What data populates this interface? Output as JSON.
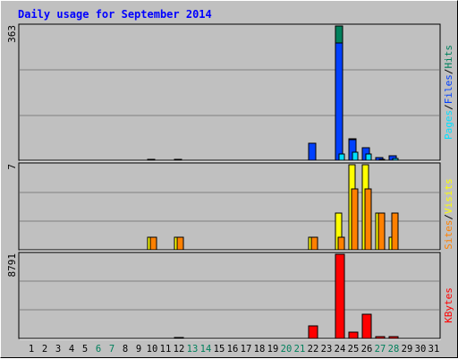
{
  "title": "Daily usage for September 2014",
  "colors": {
    "hits": "#00805c",
    "files": "#0040ff",
    "pages": "#00e0ff",
    "visits": "#ffff00",
    "sites": "#ff8000",
    "kbytes": "#ff0000",
    "weekday_label": "#000000",
    "weekend_label": "#00805c"
  },
  "chart_data": [
    {
      "type": "bar",
      "panel": "top",
      "ymax_label": "363",
      "ylim": [
        0,
        363
      ],
      "legend": [
        "Pages",
        "/",
        "Files",
        "/",
        "Hits"
      ],
      "categories": [
        "1",
        "2",
        "3",
        "4",
        "5",
        "6",
        "7",
        "8",
        "9",
        "10",
        "11",
        "12",
        "13",
        "14",
        "15",
        "16",
        "17",
        "18",
        "19",
        "20",
        "21",
        "22",
        "23",
        "24",
        "25",
        "26",
        "27",
        "28",
        "29",
        "30",
        "31"
      ],
      "weekend_days": [
        "6",
        "7",
        "13",
        "14",
        "20",
        "21",
        "27",
        "28"
      ],
      "series": [
        {
          "name": "Hits",
          "values": [
            0,
            0,
            0,
            0,
            0,
            0,
            0,
            0,
            0,
            1,
            0,
            1,
            0,
            0,
            0,
            0,
            0,
            0,
            0,
            0,
            0,
            46,
            0,
            363,
            59,
            35,
            8,
            12,
            0,
            0,
            0
          ]
        },
        {
          "name": "Files",
          "values": [
            0,
            0,
            0,
            0,
            0,
            0,
            0,
            0,
            0,
            1,
            0,
            1,
            0,
            0,
            0,
            0,
            0,
            0,
            0,
            0,
            0,
            46,
            0,
            316,
            56,
            33,
            8,
            12,
            0,
            0,
            0
          ]
        },
        {
          "name": "Pages",
          "values": [
            0,
            0,
            0,
            0,
            0,
            0,
            0,
            0,
            0,
            0,
            0,
            0,
            0,
            0,
            0,
            0,
            0,
            0,
            0,
            0,
            0,
            0,
            0,
            16,
            21,
            17,
            3,
            6,
            0,
            0,
            0
          ]
        }
      ]
    },
    {
      "type": "bar",
      "panel": "middle",
      "ymax_label": "7",
      "ylim": [
        0,
        7
      ],
      "legend": [
        "Sites",
        "/",
        "Visits"
      ],
      "categories": [
        "1",
        "2",
        "3",
        "4",
        "5",
        "6",
        "7",
        "8",
        "9",
        "10",
        "11",
        "12",
        "13",
        "14",
        "15",
        "16",
        "17",
        "18",
        "19",
        "20",
        "21",
        "22",
        "23",
        "24",
        "25",
        "26",
        "27",
        "28",
        "29",
        "30",
        "31"
      ],
      "series": [
        {
          "name": "Visits",
          "values": [
            0,
            0,
            0,
            0,
            0,
            0,
            0,
            0,
            0,
            1,
            0,
            1,
            0,
            0,
            0,
            0,
            0,
            0,
            0,
            0,
            0,
            1,
            0,
            3,
            7,
            7,
            3,
            1,
            0,
            0,
            0
          ]
        },
        {
          "name": "Sites",
          "values": [
            0,
            0,
            0,
            0,
            0,
            0,
            0,
            0,
            0,
            1,
            0,
            1,
            0,
            0,
            0,
            0,
            0,
            0,
            0,
            0,
            0,
            1,
            0,
            1,
            5,
            5,
            3,
            3,
            0,
            0,
            0
          ]
        }
      ]
    },
    {
      "type": "bar",
      "panel": "bottom",
      "ymax_label": "8791",
      "ylim": [
        0,
        8791
      ],
      "legend": [
        "KBytes"
      ],
      "categories": [
        "1",
        "2",
        "3",
        "4",
        "5",
        "6",
        "7",
        "8",
        "9",
        "10",
        "11",
        "12",
        "13",
        "14",
        "15",
        "16",
        "17",
        "18",
        "19",
        "20",
        "21",
        "22",
        "23",
        "24",
        "25",
        "26",
        "27",
        "28",
        "29",
        "30",
        "31"
      ],
      "series": [
        {
          "name": "KBytes",
          "values": [
            0,
            0,
            0,
            0,
            0,
            0,
            0,
            0,
            0,
            0,
            0,
            80,
            0,
            0,
            0,
            0,
            0,
            0,
            0,
            0,
            0,
            1280,
            0,
            8791,
            640,
            2560,
            160,
            160,
            0,
            0,
            0
          ]
        }
      ]
    }
  ]
}
